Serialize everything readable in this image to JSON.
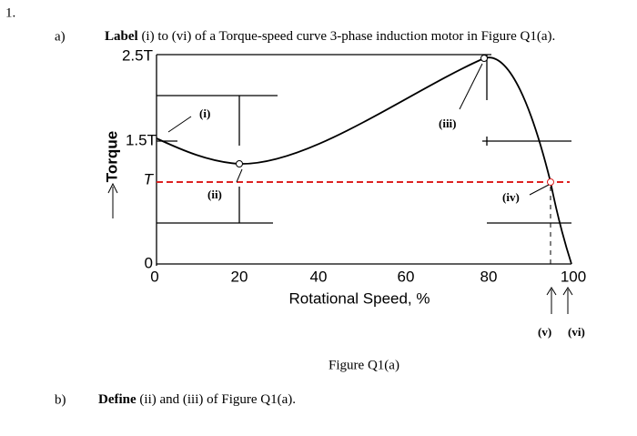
{
  "question_number": "1.",
  "part_a": {
    "label": "a)",
    "instruction_bold": "Label",
    "instruction": "(i) to (vi) of a Torque-speed curve 3-phase induction motor in Figure Q1(a).",
    "figure": {
      "y_label": "Torque",
      "x_label": "Rotational Speed, %",
      "y_ticks": [
        "2.5T",
        "1.5T",
        "T",
        "0"
      ],
      "x_ticks": [
        "0",
        "20",
        "40",
        "60",
        "80",
        "100"
      ],
      "markers": [
        "(i)",
        "(ii)",
        "(iii)",
        "(iv)",
        "(v)",
        "(vi)"
      ],
      "caption": "Figure Q1(a)"
    }
  },
  "part_b": {
    "label": "b)",
    "instruction_bold": "Define",
    "instruction": "(ii) and (iii) of Figure Q1(a)."
  }
}
